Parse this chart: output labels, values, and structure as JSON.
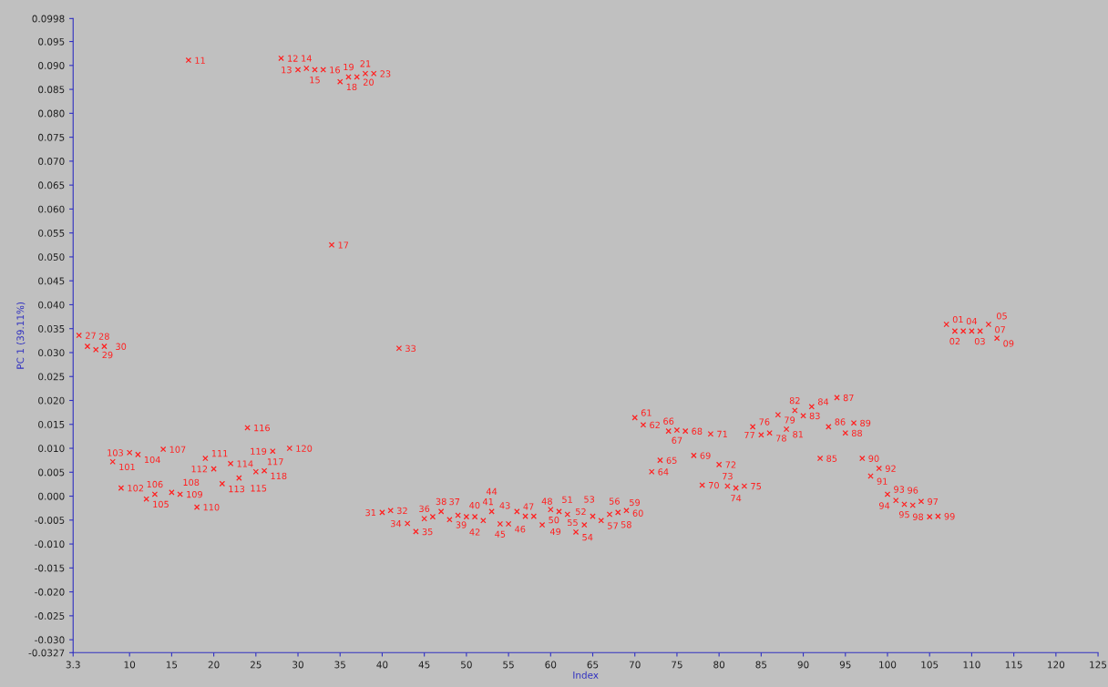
{
  "chart_data": {
    "type": "scatter",
    "xlabel": "Index",
    "ylabel": "PC 1 (39.11%)",
    "marker": "cross",
    "grid": false,
    "xlim": [
      3.3,
      125
    ],
    "xticks": [
      3.3,
      10,
      15,
      20,
      25,
      30,
      35,
      40,
      45,
      50,
      55,
      60,
      65,
      70,
      75,
      80,
      85,
      90,
      95,
      100,
      105,
      110,
      115,
      120,
      125
    ],
    "ylim": [
      -0.0327,
      0.0998
    ],
    "yticks": [
      -0.0327,
      {
        "value": -0.03,
        "label": "-0.030"
      },
      {
        "value": -0.025,
        "label": "-0.025"
      },
      {
        "value": -0.02,
        "label": "-0.020"
      },
      {
        "value": -0.015,
        "label": "-0.015"
      },
      {
        "value": -0.01,
        "label": "-0.010"
      },
      {
        "value": -0.005,
        "label": "-0.005"
      },
      {
        "value": 0,
        "label": "0.000"
      },
      {
        "value": 0.005,
        "label": "0.005"
      },
      {
        "value": 0.01,
        "label": "0.010"
      },
      {
        "value": 0.015,
        "label": "0.015"
      },
      {
        "value": 0.02,
        "label": "0.020"
      },
      {
        "value": 0.025,
        "label": "0.025"
      },
      {
        "value": 0.03,
        "label": "0.030"
      },
      {
        "value": 0.035,
        "label": "0.035"
      },
      {
        "value": 0.04,
        "label": "0.040"
      },
      {
        "value": 0.045,
        "label": "0.045"
      },
      {
        "value": 0.05,
        "label": "0.050"
      },
      {
        "value": 0.055,
        "label": "0.055"
      },
      {
        "value": 0.06,
        "label": "0.060"
      },
      {
        "value": 0.065,
        "label": "0.065"
      },
      {
        "value": 0.07,
        "label": "0.070"
      },
      {
        "value": 0.075,
        "label": "0.075"
      },
      {
        "value": 0.08,
        "label": "0.080"
      },
      {
        "value": 0.085,
        "label": "0.085"
      },
      {
        "value": 0.09,
        "label": "0.090"
      },
      {
        "value": 0.095,
        "label": "0.095"
      },
      0.0998
    ],
    "series": [
      {
        "color": "#ff2020",
        "x": [
          4,
          5,
          6,
          7,
          8,
          9,
          10,
          11,
          12,
          13,
          14,
          15,
          16,
          17,
          18,
          19,
          20,
          21,
          22,
          23,
          24,
          25,
          26,
          27,
          28,
          29,
          30,
          31,
          32,
          33,
          34,
          35,
          36,
          37,
          38,
          39,
          40,
          41,
          42,
          43,
          44,
          45,
          46,
          47,
          48,
          49,
          50,
          51,
          52,
          53,
          54,
          55,
          56,
          57,
          58,
          59,
          60,
          61,
          62,
          63,
          64,
          65,
          66,
          67,
          68,
          69,
          70,
          71,
          72,
          73,
          74,
          75,
          76,
          77,
          78,
          79,
          80,
          81,
          82,
          83,
          84,
          85,
          86,
          87,
          88,
          89,
          90,
          91,
          92,
          93,
          94,
          95,
          96,
          97,
          98,
          99,
          100,
          101,
          102,
          103,
          104,
          105,
          106,
          107,
          108,
          109,
          110,
          111,
          112,
          113
        ],
        "values": [
          0.0336,
          0.0313,
          0.0306,
          0.0313,
          0.0072,
          0.0017,
          0.0091,
          0.0087,
          -0.0006,
          0.0004,
          0.0098,
          0.0008,
          0.0004,
          0.0911,
          -0.0023,
          0.0079,
          0.0057,
          0.0026,
          0.0068,
          0.0038,
          0.0143,
          0.0051,
          0.0053,
          0.0094,
          0.0915,
          0.01,
          0.0891,
          0.0894,
          0.0891,
          0.0891,
          0.0525,
          0.0866,
          0.0876,
          0.0876,
          0.0883,
          0.0883,
          -0.0034,
          -0.003,
          0.0309,
          -0.0057,
          -0.0074,
          -0.0047,
          -0.0043,
          -0.0032,
          -0.0049,
          -0.004,
          -0.0043,
          -0.0043,
          -0.0051,
          -0.0032,
          -0.0058,
          -0.0058,
          -0.0032,
          -0.0042,
          -0.0042,
          -0.006,
          -0.0028,
          -0.0032,
          -0.0038,
          -0.0075,
          -0.006,
          -0.0042,
          -0.0051,
          -0.0038,
          -0.0034,
          -0.003,
          0.0164,
          0.0149,
          0.0051,
          0.0075,
          0.0136,
          0.0138,
          0.0136,
          0.0085,
          0.0023,
          0.013,
          0.0066,
          0.0021,
          0.0017,
          0.0021,
          0.0145,
          0.0128,
          0.0132,
          0.017,
          0.014,
          0.0179,
          0.0168,
          0.0187,
          0.0079,
          0.0145,
          0.0206,
          0.0132,
          0.0153,
          0.0079,
          0.0042,
          0.0058,
          0.0004,
          -0.0009,
          -0.0017,
          -0.0019,
          -0.0011,
          -0.0043,
          -0.0042,
          0.0359,
          0.0345,
          0.0345,
          0.0345,
          0.0345,
          0.0359,
          0.033
        ]
      }
    ],
    "annotations": [
      {
        "text": "27",
        "x": 4,
        "y": 0.0336
      },
      {
        "text": "28",
        "x": 5,
        "y": 0.0313
      },
      {
        "text": "29",
        "x": 6,
        "y": 0.0306
      },
      {
        "text": "30",
        "x": 7,
        "y": 0.0313
      },
      {
        "text": "101",
        "x": 8,
        "y": 0.0072
      },
      {
        "text": "102",
        "x": 9,
        "y": 0.0017
      },
      {
        "text": "103",
        "x": 10,
        "y": 0.0091
      },
      {
        "text": "104",
        "x": 11,
        "y": 0.0087
      },
      {
        "text": "105",
        "x": 12,
        "y": -0.0006
      },
      {
        "text": "106",
        "x": 13,
        "y": 0.0004
      },
      {
        "text": "107",
        "x": 14,
        "y": 0.0098
      },
      {
        "text": "108",
        "x": 15,
        "y": 0.0008
      },
      {
        "text": "109",
        "x": 16,
        "y": 0.0004
      },
      {
        "text": "11",
        "x": 17,
        "y": 0.0911
      },
      {
        "text": "110",
        "x": 18,
        "y": -0.0023
      },
      {
        "text": "111",
        "x": 19,
        "y": 0.0079
      },
      {
        "text": "112",
        "x": 20,
        "y": 0.0057
      },
      {
        "text": "113",
        "x": 21,
        "y": 0.0026
      },
      {
        "text": "114",
        "x": 22,
        "y": 0.0068
      },
      {
        "text": "115",
        "x": 23,
        "y": 0.0038
      },
      {
        "text": "116",
        "x": 24,
        "y": 0.0143
      },
      {
        "text": "117",
        "x": 25,
        "y": 0.0051
      },
      {
        "text": "118",
        "x": 26,
        "y": 0.0053
      },
      {
        "text": "119",
        "x": 27,
        "y": 0.0094
      },
      {
        "text": "12",
        "x": 28,
        "y": 0.0915
      },
      {
        "text": "120",
        "x": 29,
        "y": 0.01
      },
      {
        "text": "13",
        "x": 30,
        "y": 0.0891
      },
      {
        "text": "14",
        "x": 31,
        "y": 0.0894
      },
      {
        "text": "15",
        "x": 32,
        "y": 0.0891
      },
      {
        "text": "16",
        "x": 33,
        "y": 0.0891
      },
      {
        "text": "17",
        "x": 34,
        "y": 0.0525
      },
      {
        "text": "18",
        "x": 35,
        "y": 0.0866
      },
      {
        "text": "19",
        "x": 36,
        "y": 0.0876
      },
      {
        "text": "20",
        "x": 37,
        "y": 0.0876
      },
      {
        "text": "21",
        "x": 38,
        "y": 0.0883
      },
      {
        "text": "23",
        "x": 39,
        "y": 0.0883
      },
      {
        "text": "31",
        "x": 40,
        "y": -0.0034
      },
      {
        "text": "32",
        "x": 41,
        "y": -0.003
      },
      {
        "text": "33",
        "x": 42,
        "y": 0.0309
      },
      {
        "text": "34",
        "x": 43,
        "y": -0.0057
      },
      {
        "text": "35",
        "x": 44,
        "y": -0.0074
      },
      {
        "text": "36",
        "x": 45,
        "y": -0.0047
      },
      {
        "text": "37",
        "x": 46,
        "y": -0.0043
      },
      {
        "text": "38",
        "x": 47,
        "y": -0.0032
      },
      {
        "text": "39",
        "x": 48,
        "y": -0.0049
      },
      {
        "text": "40",
        "x": 49,
        "y": -0.004
      },
      {
        "text": "41",
        "x": 50,
        "y": -0.0043
      },
      {
        "text": "42",
        "x": 51,
        "y": -0.0043
      },
      {
        "text": "43",
        "x": 52,
        "y": -0.0051
      },
      {
        "text": "44",
        "x": 53,
        "y": -0.0032
      },
      {
        "text": "45",
        "x": 54,
        "y": -0.0058
      },
      {
        "text": "46",
        "x": 55,
        "y": -0.0058
      },
      {
        "text": "47",
        "x": 56,
        "y": -0.0032
      },
      {
        "text": "48",
        "x": 57,
        "y": -0.0042
      },
      {
        "text": "49",
        "x": 58,
        "y": -0.0042
      },
      {
        "text": "50",
        "x": 59,
        "y": -0.006
      },
      {
        "text": "51",
        "x": 60,
        "y": -0.0028
      },
      {
        "text": "52",
        "x": 61,
        "y": -0.0032
      },
      {
        "text": "53",
        "x": 62,
        "y": -0.0038
      },
      {
        "text": "54",
        "x": 63,
        "y": -0.0075
      },
      {
        "text": "55",
        "x": 64,
        "y": -0.006
      },
      {
        "text": "56",
        "x": 65,
        "y": -0.0042
      },
      {
        "text": "57",
        "x": 66,
        "y": -0.0051
      },
      {
        "text": "58",
        "x": 67,
        "y": -0.0038
      },
      {
        "text": "59",
        "x": 68,
        "y": -0.0034
      },
      {
        "text": "60",
        "x": 69,
        "y": -0.003
      },
      {
        "text": "61",
        "x": 70,
        "y": 0.0164
      },
      {
        "text": "62",
        "x": 71,
        "y": 0.0149
      },
      {
        "text": "64",
        "x": 72,
        "y": 0.0051
      },
      {
        "text": "65",
        "x": 73,
        "y": 0.0075
      },
      {
        "text": "66",
        "x": 74,
        "y": 0.0136
      },
      {
        "text": "67",
        "x": 75,
        "y": 0.0138
      },
      {
        "text": "68",
        "x": 76,
        "y": 0.0136
      },
      {
        "text": "69",
        "x": 77,
        "y": 0.0085
      },
      {
        "text": "70",
        "x": 78,
        "y": 0.0023
      },
      {
        "text": "71",
        "x": 79,
        "y": 0.013
      },
      {
        "text": "72",
        "x": 80,
        "y": 0.0066
      },
      {
        "text": "73",
        "x": 81,
        "y": 0.0021
      },
      {
        "text": "74",
        "x": 82,
        "y": 0.0017
      },
      {
        "text": "75",
        "x": 83,
        "y": 0.0021
      },
      {
        "text": "76",
        "x": 84,
        "y": 0.0145
      },
      {
        "text": "77",
        "x": 85,
        "y": 0.0128
      },
      {
        "text": "78",
        "x": 86,
        "y": 0.0132
      },
      {
        "text": "79",
        "x": 87,
        "y": 0.017
      },
      {
        "text": "81",
        "x": 88,
        "y": 0.014
      },
      {
        "text": "82",
        "x": 89,
        "y": 0.0179
      },
      {
        "text": "83",
        "x": 90,
        "y": 0.0168
      },
      {
        "text": "84",
        "x": 91,
        "y": 0.0187
      },
      {
        "text": "85",
        "x": 92,
        "y": 0.0079
      },
      {
        "text": "86",
        "x": 93,
        "y": 0.0145
      },
      {
        "text": "87",
        "x": 94,
        "y": 0.0206
      },
      {
        "text": "88",
        "x": 95,
        "y": 0.0132
      },
      {
        "text": "89",
        "x": 96,
        "y": 0.0153
      },
      {
        "text": "90",
        "x": 97,
        "y": 0.0079
      },
      {
        "text": "91",
        "x": 98,
        "y": 0.0042
      },
      {
        "text": "92",
        "x": 99,
        "y": 0.0058
      },
      {
        "text": "93",
        "x": 100,
        "y": 0.0004
      },
      {
        "text": "94",
        "x": 101,
        "y": -0.0009
      },
      {
        "text": "95",
        "x": 102,
        "y": -0.0017
      },
      {
        "text": "96",
        "x": 103,
        "y": -0.0019
      },
      {
        "text": "97",
        "x": 104,
        "y": -0.0011
      },
      {
        "text": "98",
        "x": 105,
        "y": -0.0043
      },
      {
        "text": "99",
        "x": 106,
        "y": -0.0042
      },
      {
        "text": "01",
        "x": 107,
        "y": 0.0359
      },
      {
        "text": "02",
        "x": 108,
        "y": 0.0345
      },
      {
        "text": "03",
        "x": 109,
        "y": 0.0345
      },
      {
        "text": "04",
        "x": 110,
        "y": 0.0345
      },
      {
        "text": "05",
        "x": 111,
        "y": 0.0345
      },
      {
        "text": "07",
        "x": 112,
        "y": 0.0359
      },
      {
        "text": "09",
        "x": 113,
        "y": 0.033
      }
    ]
  }
}
